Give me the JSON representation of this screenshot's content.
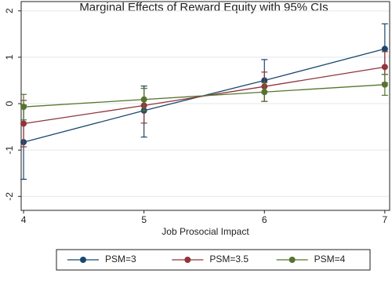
{
  "chart_data": {
    "type": "line",
    "title": "Marginal Effects of Reward Equity with 95% CIs",
    "x_label": "Job Prosocial Impact",
    "x": [
      4,
      5,
      6,
      7
    ],
    "xlim": [
      3.98,
      7.04
    ],
    "xticks": [
      4,
      5,
      6,
      7
    ],
    "ylim": [
      -2.3,
      2.2
    ],
    "yticks": [
      -2,
      -1,
      0,
      1,
      2
    ],
    "grid": true,
    "legend": "bottom",
    "series": [
      {
        "name": "PSM=3",
        "color": "#1a476f",
        "values": [
          -0.83,
          -0.15,
          0.5,
          1.18
        ],
        "lower": [
          -1.63,
          -0.72,
          0.05,
          0.63
        ],
        "upper": [
          -0.03,
          0.38,
          0.95,
          1.72
        ]
      },
      {
        "name": "PSM=3.5",
        "color": "#90353b",
        "values": [
          -0.43,
          -0.04,
          0.37,
          0.79
        ],
        "lower": [
          -0.93,
          -0.42,
          0.05,
          0.45
        ],
        "upper": [
          0.07,
          0.33,
          0.68,
          1.12
        ]
      },
      {
        "name": "PSM=4",
        "color": "#55752f",
        "values": [
          -0.07,
          0.09,
          0.25,
          0.41
        ],
        "lower": [
          -0.35,
          -0.15,
          0.05,
          0.18
        ],
        "upper": [
          0.2,
          0.33,
          0.45,
          0.63
        ]
      }
    ]
  }
}
